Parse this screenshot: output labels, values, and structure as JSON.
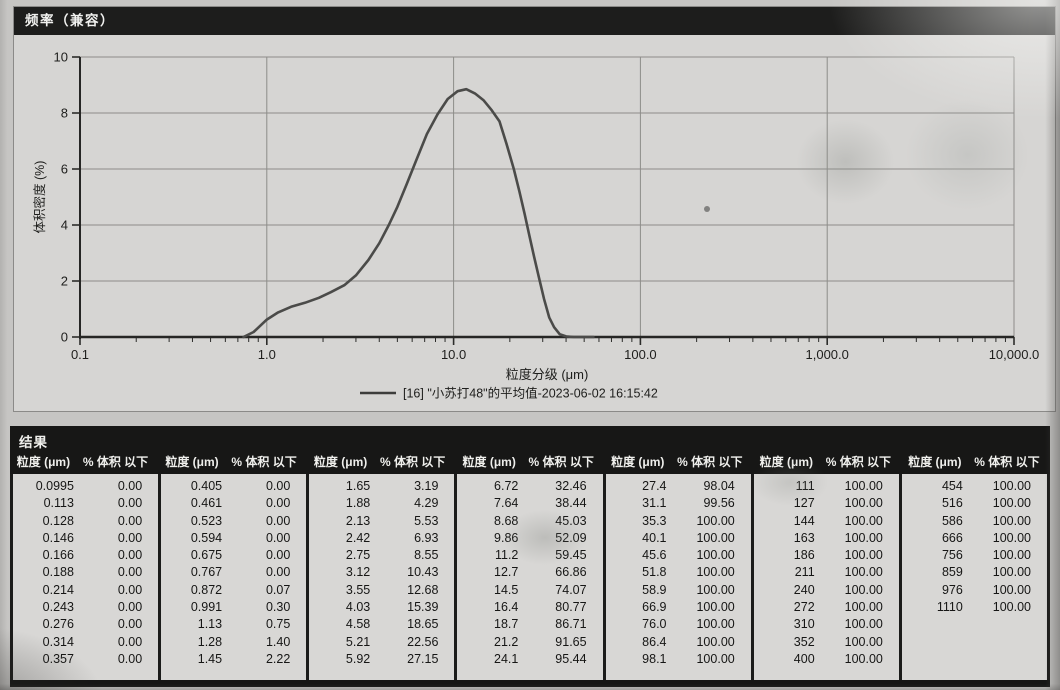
{
  "chart_panel": {
    "title_bar": "频率（兼容）",
    "chart_data": {
      "type": "line",
      "title": "频率（兼容）",
      "xlabel": "粒度分级 (μm)",
      "ylabel": "体积密度 (%)",
      "x_scale": "log",
      "xlim": [
        0.1,
        10000
      ],
      "ylim": [
        0,
        10
      ],
      "grid": true,
      "x_tick_values": [
        0.1,
        1,
        10,
        100,
        1000,
        10000
      ],
      "x_tick_labels": [
        "0.1",
        "1.0",
        "10.0",
        "100.0",
        "1,000.0",
        "10,000.0"
      ],
      "y_tick_values": [
        0,
        2,
        4,
        6,
        8,
        10
      ],
      "y_tick_labels": [
        "0",
        "2",
        "4",
        "6",
        "8",
        "10"
      ],
      "legend_position": "bottom",
      "curve_color": "#4b4b49",
      "series": [
        {
          "name": "[16] \"小苏打48\"的平均值-2023-06-02 16:15:42",
          "points": [
            [
              0.75,
              0.0
            ],
            [
              0.85,
              0.18
            ],
            [
              1.0,
              0.62
            ],
            [
              1.15,
              0.88
            ],
            [
              1.35,
              1.08
            ],
            [
              1.6,
              1.22
            ],
            [
              1.9,
              1.4
            ],
            [
              2.2,
              1.6
            ],
            [
              2.6,
              1.85
            ],
            [
              3.0,
              2.2
            ],
            [
              3.5,
              2.75
            ],
            [
              4.0,
              3.35
            ],
            [
              4.5,
              4.0
            ],
            [
              5.0,
              4.65
            ],
            [
              5.6,
              5.45
            ],
            [
              6.3,
              6.3
            ],
            [
              7.2,
              7.25
            ],
            [
              8.2,
              7.95
            ],
            [
              9.3,
              8.5
            ],
            [
              10.5,
              8.78
            ],
            [
              11.7,
              8.85
            ],
            [
              13.0,
              8.7
            ],
            [
              14.5,
              8.45
            ],
            [
              16.0,
              8.1
            ],
            [
              17.6,
              7.7
            ],
            [
              19.2,
              6.9
            ],
            [
              21.0,
              6.0
            ],
            [
              22.5,
              5.2
            ],
            [
              24.0,
              4.4
            ],
            [
              25.5,
              3.6
            ],
            [
              27.0,
              2.85
            ],
            [
              28.7,
              2.1
            ],
            [
              30.5,
              1.35
            ],
            [
              32.5,
              0.7
            ],
            [
              34.5,
              0.35
            ],
            [
              37.0,
              0.1
            ],
            [
              40.0,
              0.02
            ],
            [
              44.0,
              0.0
            ],
            [
              56.0,
              0.0
            ]
          ]
        }
      ]
    }
  },
  "results_panel": {
    "title": "结果",
    "column_headers": {
      "size": "粒度 (μm)",
      "volume": "% 体积 以下"
    },
    "groups": [
      [
        [
          "0.0995",
          "0.00"
        ],
        [
          "0.113",
          "0.00"
        ],
        [
          "0.128",
          "0.00"
        ],
        [
          "0.146",
          "0.00"
        ],
        [
          "0.166",
          "0.00"
        ],
        [
          "0.188",
          "0.00"
        ],
        [
          "0.214",
          "0.00"
        ],
        [
          "0.243",
          "0.00"
        ],
        [
          "0.276",
          "0.00"
        ],
        [
          "0.314",
          "0.00"
        ],
        [
          "0.357",
          "0.00"
        ]
      ],
      [
        [
          "0.405",
          "0.00"
        ],
        [
          "0.461",
          "0.00"
        ],
        [
          "0.523",
          "0.00"
        ],
        [
          "0.594",
          "0.00"
        ],
        [
          "0.675",
          "0.00"
        ],
        [
          "0.767",
          "0.00"
        ],
        [
          "0.872",
          "0.07"
        ],
        [
          "0.991",
          "0.30"
        ],
        [
          "1.13",
          "0.75"
        ],
        [
          "1.28",
          "1.40"
        ],
        [
          "1.45",
          "2.22"
        ]
      ],
      [
        [
          "1.65",
          "3.19"
        ],
        [
          "1.88",
          "4.29"
        ],
        [
          "2.13",
          "5.53"
        ],
        [
          "2.42",
          "6.93"
        ],
        [
          "2.75",
          "8.55"
        ],
        [
          "3.12",
          "10.43"
        ],
        [
          "3.55",
          "12.68"
        ],
        [
          "4.03",
          "15.39"
        ],
        [
          "4.58",
          "18.65"
        ],
        [
          "5.21",
          "22.56"
        ],
        [
          "5.92",
          "27.15"
        ]
      ],
      [
        [
          "6.72",
          "32.46"
        ],
        [
          "7.64",
          "38.44"
        ],
        [
          "8.68",
          "45.03"
        ],
        [
          "9.86",
          "52.09"
        ],
        [
          "11.2",
          "59.45"
        ],
        [
          "12.7",
          "66.86"
        ],
        [
          "14.5",
          "74.07"
        ],
        [
          "16.4",
          "80.77"
        ],
        [
          "18.7",
          "86.71"
        ],
        [
          "21.2",
          "91.65"
        ],
        [
          "24.1",
          "95.44"
        ]
      ],
      [
        [
          "27.4",
          "98.04"
        ],
        [
          "31.1",
          "99.56"
        ],
        [
          "35.3",
          "100.00"
        ],
        [
          "40.1",
          "100.00"
        ],
        [
          "45.6",
          "100.00"
        ],
        [
          "51.8",
          "100.00"
        ],
        [
          "58.9",
          "100.00"
        ],
        [
          "66.9",
          "100.00"
        ],
        [
          "76.0",
          "100.00"
        ],
        [
          "86.4",
          "100.00"
        ],
        [
          "98.1",
          "100.00"
        ]
      ],
      [
        [
          "111",
          "100.00"
        ],
        [
          "127",
          "100.00"
        ],
        [
          "144",
          "100.00"
        ],
        [
          "163",
          "100.00"
        ],
        [
          "186",
          "100.00"
        ],
        [
          "211",
          "100.00"
        ],
        [
          "240",
          "100.00"
        ],
        [
          "272",
          "100.00"
        ],
        [
          "310",
          "100.00"
        ],
        [
          "352",
          "100.00"
        ],
        [
          "400",
          "100.00"
        ]
      ],
      [
        [
          "454",
          "100.00"
        ],
        [
          "516",
          "100.00"
        ],
        [
          "586",
          "100.00"
        ],
        [
          "666",
          "100.00"
        ],
        [
          "756",
          "100.00"
        ],
        [
          "859",
          "100.00"
        ],
        [
          "976",
          "100.00"
        ],
        [
          "1110",
          "100.00"
        ]
      ]
    ]
  }
}
